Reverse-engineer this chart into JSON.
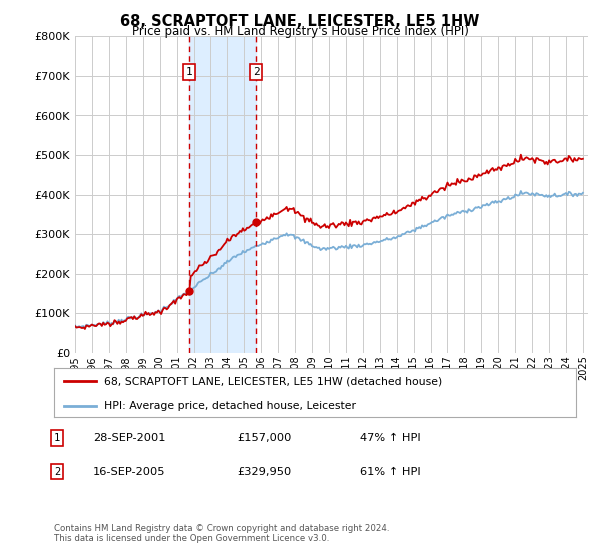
{
  "title": "68, SCRAPTOFT LANE, LEICESTER, LE5 1HW",
  "subtitle": "Price paid vs. HM Land Registry's House Price Index (HPI)",
  "legend_line1": "68, SCRAPTOFT LANE, LEICESTER, LE5 1HW (detached house)",
  "legend_line2": "HPI: Average price, detached house, Leicester",
  "sale1_date": "28-SEP-2001",
  "sale1_price": 157000,
  "sale1_hpi_pct": "47% ↑ HPI",
  "sale2_date": "16-SEP-2005",
  "sale2_price": 329950,
  "sale2_hpi_pct": "61% ↑ HPI",
  "footnote1": "Contains HM Land Registry data © Crown copyright and database right 2024.",
  "footnote2": "This data is licensed under the Open Government Licence v3.0.",
  "ylim": [
    0,
    800000
  ],
  "yticks": [
    0,
    100000,
    200000,
    300000,
    400000,
    500000,
    600000,
    700000,
    800000
  ],
  "red_line_color": "#cc0000",
  "blue_line_color": "#7aaed6",
  "shade_color": "#ddeeff",
  "grid_color": "#cccccc",
  "bg_color": "#ffffff",
  "sale1_x": 2001.75,
  "sale2_x": 2005.71,
  "xmin": 1995,
  "xmax": 2025.3
}
